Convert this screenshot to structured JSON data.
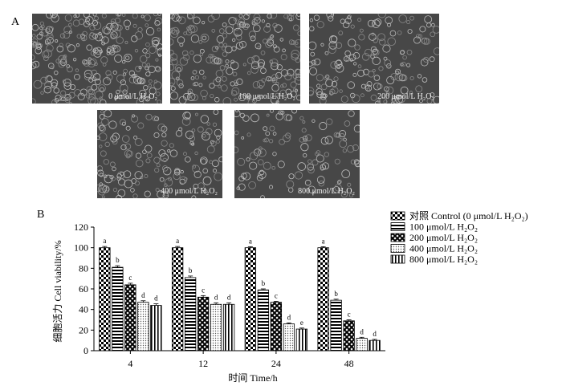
{
  "panel_a_label": "A",
  "panel_b_label": "B",
  "micrographs": [
    {
      "label": "0 μmol/L H₂O₂"
    },
    {
      "label": "100 μmol/L H₂O₂"
    },
    {
      "label": "200 μmol/L H₂O₂"
    },
    {
      "label": "400 μmol/L H₂O₂"
    },
    {
      "label": "800 μmol/L H₂O₂"
    }
  ],
  "chart_data": {
    "type": "bar",
    "title": "",
    "xlabel": "时间  Time/h",
    "ylabel": "细胞活力  Cell viability/%",
    "categories": [
      "4",
      "12",
      "24",
      "48"
    ],
    "ylim": [
      0,
      120
    ],
    "yticks": [
      0,
      20,
      40,
      60,
      80,
      100,
      120
    ],
    "legend_position": "top-right",
    "series": [
      {
        "name": "对照 Control (0 μmol/L H₂O₂)",
        "pattern": "checker",
        "values": [
          100,
          100,
          100,
          100
        ],
        "errors": [
          1.2,
          1.2,
          1.0,
          1.0
        ],
        "letters": [
          "a",
          "a",
          "a",
          "a"
        ]
      },
      {
        "name": "100 μmol/L H₂O₂",
        "pattern": "hstripes",
        "values": [
          81,
          71,
          59,
          49
        ],
        "errors": [
          1.5,
          1.5,
          1.0,
          1.0
        ],
        "letters": [
          "b",
          "b",
          "b",
          "b"
        ]
      },
      {
        "name": "200 μmol/L H₂O₂",
        "pattern": "xdense",
        "values": [
          64,
          52,
          47,
          29
        ],
        "errors": [
          1.5,
          1.5,
          1.0,
          1.0
        ],
        "letters": [
          "c",
          "c",
          "c",
          "c"
        ]
      },
      {
        "name": "400 μmol/L H₂O₂",
        "pattern": "dots",
        "values": [
          47,
          45,
          26,
          12
        ],
        "errors": [
          1.5,
          1.5,
          1.0,
          1.0
        ],
        "letters": [
          "d",
          "d",
          "d",
          "d"
        ]
      },
      {
        "name": "800 μmol/L H₂O₂",
        "pattern": "vstripes",
        "values": [
          44,
          45,
          21,
          10
        ],
        "errors": [
          1.5,
          1.5,
          1.0,
          1.0
        ],
        "letters": [
          "d",
          "d",
          "e",
          "d"
        ]
      }
    ]
  }
}
